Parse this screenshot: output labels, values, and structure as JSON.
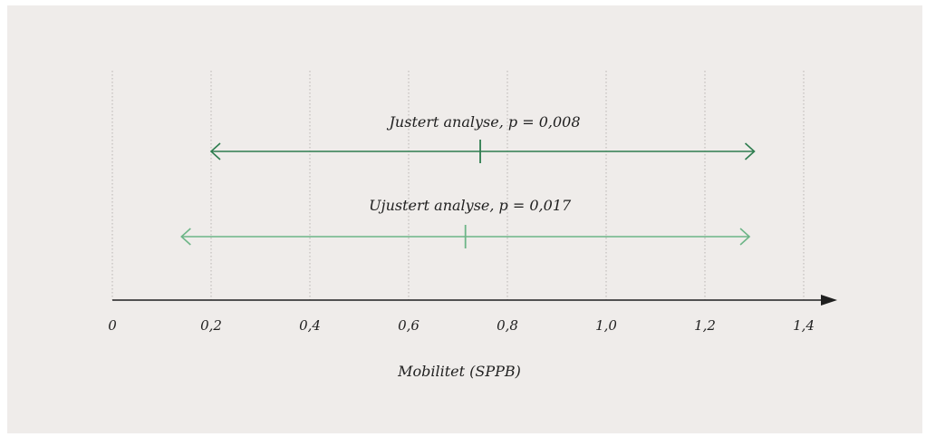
{
  "chart_data": {
    "type": "interval",
    "xlabel": "Mobilitet (SPPB)",
    "xlim": [
      0,
      1.4
    ],
    "ticks": [
      0,
      0.2,
      0.4,
      0.6,
      0.8,
      1.0,
      1.2,
      1.4
    ],
    "tick_labels": [
      "0",
      "0,2",
      "0,4",
      "0,6",
      "0,8",
      "1,0",
      "1,2",
      "1,4"
    ],
    "grid": true,
    "series": [
      {
        "label": "Justert analyse,  p = 0,008",
        "estimate": 0.745,
        "ci": [
          0.2,
          1.3
        ],
        "color": "#2e7d4f"
      },
      {
        "label": "Ujustert analyse, p = 0,017",
        "estimate": 0.715,
        "ci": [
          0.14,
          1.29
        ],
        "color": "#6db587"
      }
    ],
    "axis_color": "#1f1f1f",
    "grid_color": "#b8b5b2"
  }
}
